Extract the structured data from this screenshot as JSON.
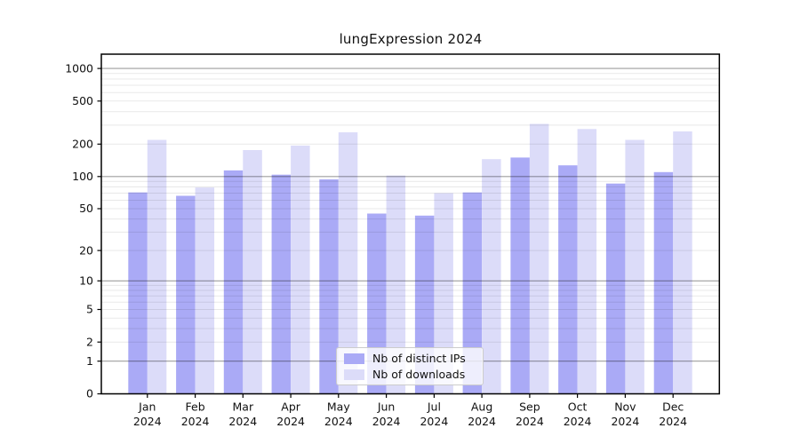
{
  "title": "lungExpression 2024",
  "chart_data": {
    "type": "bar",
    "title": "lungExpression 2024",
    "categories": [
      "Jan 2024",
      "Feb 2024",
      "Mar 2024",
      "Apr 2024",
      "May 2024",
      "Jun 2024",
      "Jul 2024",
      "Aug 2024",
      "Sep 2024",
      "Oct 2024",
      "Nov 2024",
      "Dec 2024"
    ],
    "series": [
      {
        "name": "Nb of distinct IPs",
        "color": "#aaaaf6",
        "values": [
          71,
          66,
          114,
          104,
          94,
          45,
          43,
          71,
          150,
          127,
          86,
          110
        ]
      },
      {
        "name": "Nb of downloads",
        "color": "#dcdcf9",
        "values": [
          219,
          79,
          176,
          194,
          257,
          102,
          70,
          145,
          308,
          276,
          219,
          262
        ]
      }
    ],
    "xlabel": "",
    "ylabel": "",
    "yscale": "log1p",
    "y_ticks": [
      0,
      1,
      2,
      5,
      10,
      20,
      50,
      100,
      200,
      500,
      1000
    ],
    "ylim": [
      0,
      1350
    ],
    "grid": "horizontal; dark lines at 1,10,100,1000; faint log minors (2-9 per decade); drawn over bars",
    "legend": {
      "position": "lower center",
      "labels": [
        "Nb of distinct IPs",
        "Nb of downloads"
      ]
    }
  },
  "colors": {
    "background": "#ffffff",
    "bar_distinct_ips": "#aaaaf6",
    "bar_downloads": "#dcdcf9",
    "grid_major": "rgba(0,0,0,0.38)",
    "grid_minor": "rgba(0,0,0,0.09)",
    "axis": "#000000",
    "text": "#111111"
  }
}
